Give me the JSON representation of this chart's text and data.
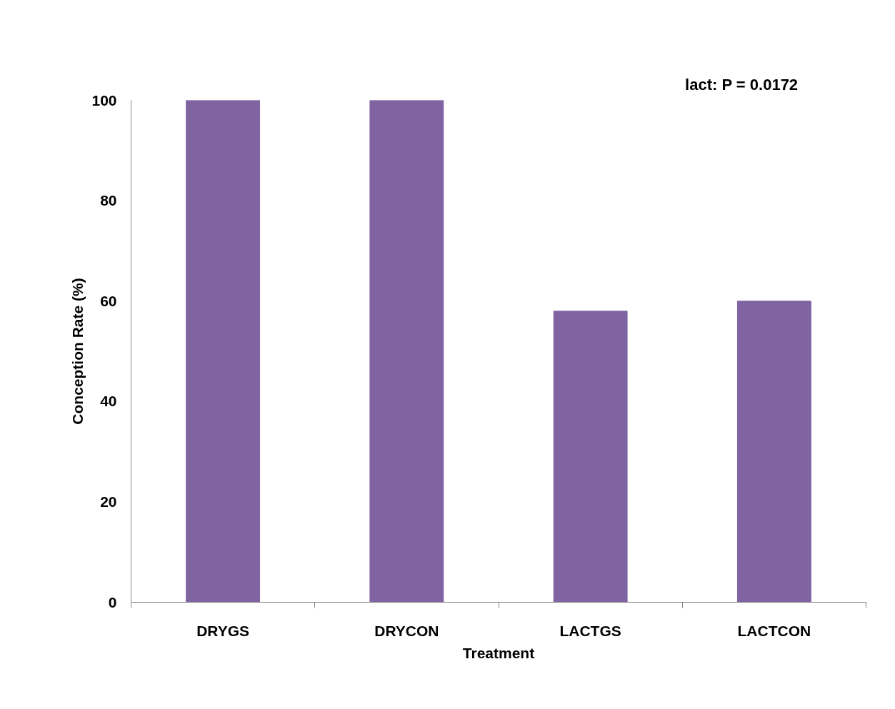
{
  "chart_data": {
    "type": "bar",
    "xlabel": "Treatment",
    "ylabel": "Conception Rate (%)",
    "categories": [
      "DRYGS",
      "DRYCON",
      "LACTGS",
      "LACTCON"
    ],
    "values": [
      100,
      100,
      58,
      60
    ],
    "color": "#8064a2",
    "ylim": [
      0,
      100
    ],
    "yticks": [
      0,
      20,
      40,
      60,
      80,
      100
    ],
    "grid": false,
    "annotations": [
      "lact: P = 0.0172"
    ]
  }
}
